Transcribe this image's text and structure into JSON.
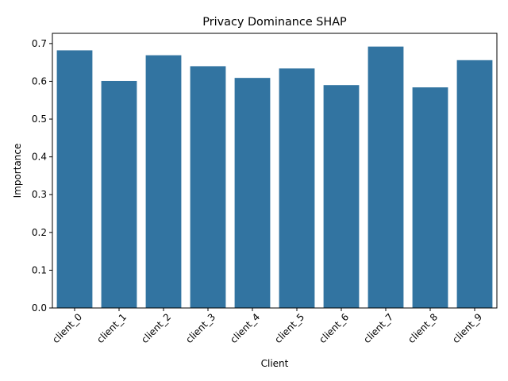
{
  "chart_data": {
    "type": "bar",
    "title": "Privacy Dominance SHAP",
    "xlabel": "Client",
    "ylabel": "Importance",
    "categories": [
      "client_0",
      "client_1",
      "client_2",
      "client_3",
      "client_4",
      "client_5",
      "client_6",
      "client_7",
      "client_8",
      "client_9"
    ],
    "values": [
      0.682,
      0.601,
      0.669,
      0.64,
      0.609,
      0.634,
      0.59,
      0.692,
      0.584,
      0.656
    ],
    "ylim": [
      0,
      0.727
    ],
    "yticks": [
      0.0,
      0.1,
      0.2,
      0.3,
      0.4,
      0.5,
      0.6,
      0.7
    ],
    "ytick_labels": [
      "0.0",
      "0.1",
      "0.2",
      "0.3",
      "0.4",
      "0.5",
      "0.6",
      "0.7"
    ],
    "bar_color": "#3274a1",
    "grid": false,
    "legend": "none"
  }
}
